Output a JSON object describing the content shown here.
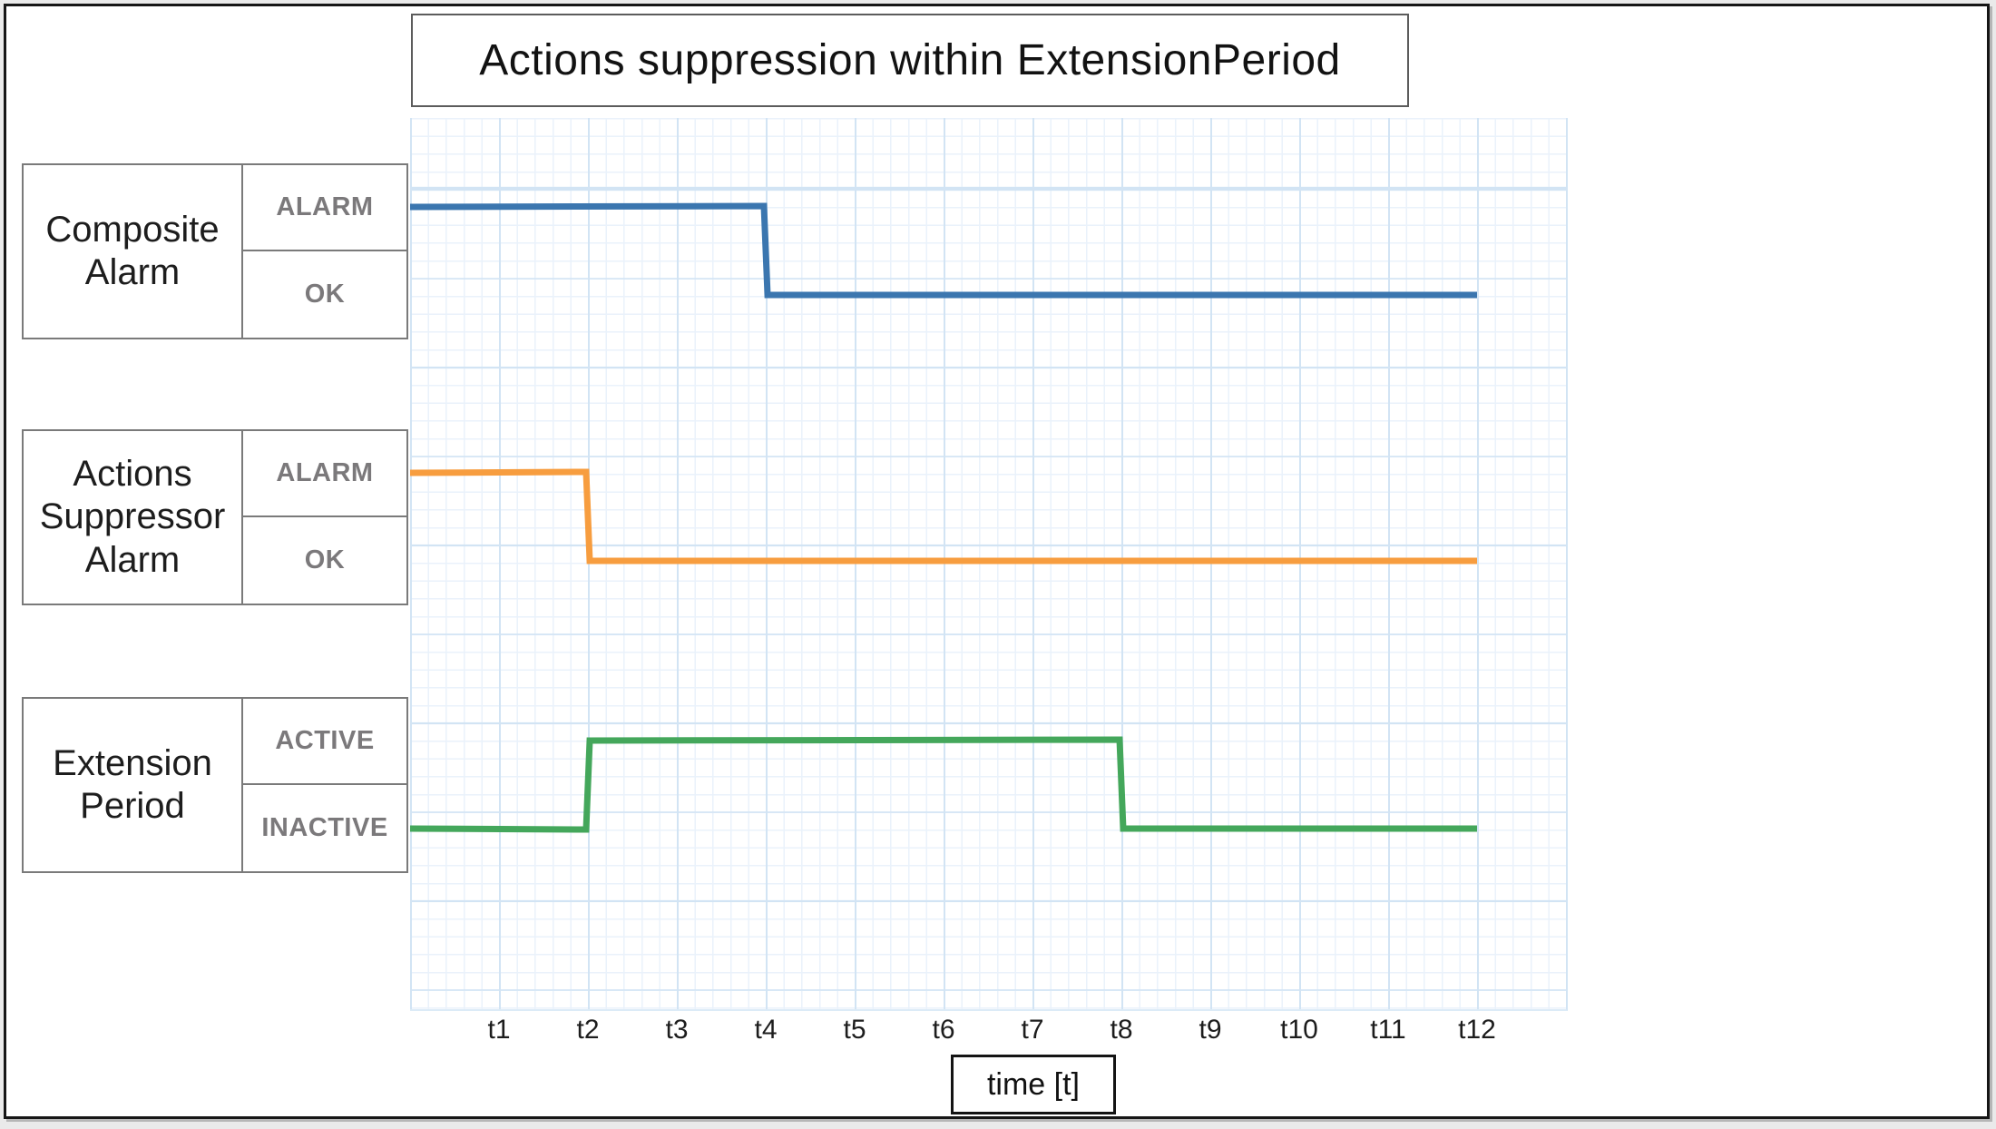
{
  "chart": {
    "title": "Actions suppression within ExtensionPeriod",
    "axis_label": "time [t]"
  },
  "rows": [
    {
      "id": "composite-alarm",
      "label": "Composite\nAlarm",
      "states": [
        "ALARM",
        "OK"
      ]
    },
    {
      "id": "actions-suppressor-alarm",
      "label": "Actions\nSuppressor\nAlarm",
      "states": [
        "ALARM",
        "OK"
      ]
    },
    {
      "id": "extension-period",
      "label": "Extension\nPeriod",
      "states": [
        "ACTIVE",
        "INACTIVE"
      ]
    }
  ],
  "chart_data": {
    "type": "line",
    "subtype": "step-state-timeline",
    "title": "Actions suppression within ExtensionPeriod",
    "xlabel": "time [t]",
    "x_range": [
      0,
      12
    ],
    "ticks": [
      "t1",
      "t2",
      "t3",
      "t4",
      "t5",
      "t6",
      "t7",
      "t8",
      "t9",
      "t10",
      "t11",
      "t12"
    ],
    "grid": true,
    "legend_position": "none",
    "series": [
      {
        "id": "composite-alarm",
        "name": "Composite Alarm",
        "color": "#3b76af",
        "states": [
          "ALARM",
          "OK"
        ],
        "transitions": [
          {
            "t": 0,
            "state": "ALARM"
          },
          {
            "t": 4,
            "state": "OK"
          }
        ]
      },
      {
        "id": "actions-suppressor-alarm",
        "name": "Actions Suppressor Alarm",
        "color": "#f79d3f",
        "states": [
          "ALARM",
          "OK"
        ],
        "transitions": [
          {
            "t": 0,
            "state": "ALARM"
          },
          {
            "t": 2,
            "state": "OK"
          }
        ]
      },
      {
        "id": "extension-period",
        "name": "Extension Period",
        "color": "#44a75b",
        "states": [
          "ACTIVE",
          "INACTIVE"
        ],
        "transitions": [
          {
            "t": 0,
            "state": "INACTIVE"
          },
          {
            "t": 2,
            "state": "ACTIVE"
          },
          {
            "t": 8,
            "state": "INACTIVE"
          }
        ]
      }
    ]
  },
  "colors": {
    "grid_minor": "#eaf2fb",
    "grid_major": "#d2e4f4",
    "border_dark": "#161616",
    "border_gray": "#7a7a7a",
    "state_text": "#7b797b",
    "text": "#1d1d1d"
  }
}
